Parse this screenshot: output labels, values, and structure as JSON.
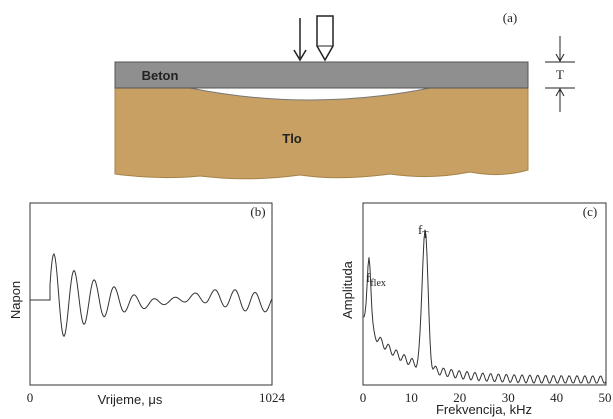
{
  "panel_a": {
    "label": "(a)",
    "slab": "Beton",
    "soil": "Tlo",
    "thickness": "T"
  },
  "panel_b": {
    "label": "(b)",
    "y_label": "Napon",
    "x_label": "Vrijeme, μs",
    "x_ticks": [
      "0",
      "1024"
    ]
  },
  "panel_c": {
    "label": "(c)",
    "y_label": "Amplituda",
    "x_label": "Frekvencija, kHz",
    "x_ticks": [
      "0",
      "10",
      "20",
      "30",
      "40",
      "50"
    ],
    "peaks": [
      {
        "symbol": "f",
        "subscript": "flex"
      },
      {
        "symbol": "f",
        "subscript": "T"
      }
    ]
  }
}
